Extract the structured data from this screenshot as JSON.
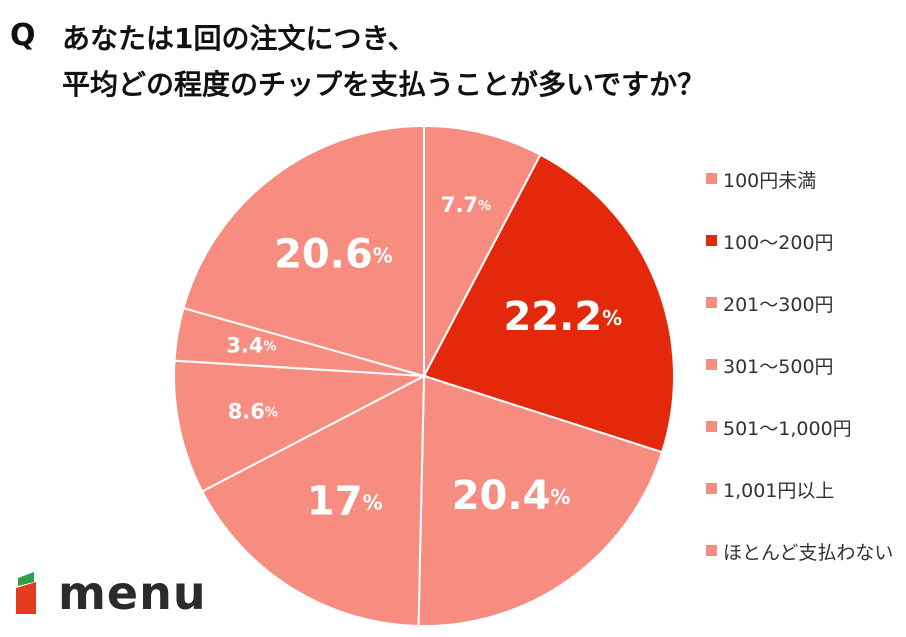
{
  "header": {
    "q_mark": "Q",
    "question_line1": "あなたは1回の注文につき、",
    "question_line2": "平均どの程度のチップを支払うことが多いですか？"
  },
  "chart_data": {
    "type": "pie",
    "title": "あなたは1回の注文につき、平均どの程度のチップを支払うことが多いですか？",
    "unit": "%",
    "categories": [
      "100円未満",
      "100〜200円",
      "201〜300円",
      "301〜500円",
      "501〜1,000円",
      "1,001円以上",
      "ほとんど支払わない"
    ],
    "slices": [
      {
        "label": "100円未満",
        "value": 7.7,
        "display": "7.7",
        "color": "#f78c80"
      },
      {
        "label": "100〜200円",
        "value": 22.2,
        "display": "22.2",
        "color": "#e4280b"
      },
      {
        "label": "201〜300円",
        "value": 20.4,
        "display": "20.4",
        "color": "#f78c80"
      },
      {
        "label": "301〜500円",
        "value": 17,
        "display": "17",
        "color": "#f78c80"
      },
      {
        "label": "501〜1,000円",
        "value": 8.6,
        "display": "8.6",
        "color": "#f78c80"
      },
      {
        "label": "1,001円以上",
        "value": 3.4,
        "display": "3.4",
        "color": "#f78c80"
      },
      {
        "label": "ほとんど支払わない",
        "value": 20.6,
        "display": "20.6",
        "color": "#f78c80"
      }
    ],
    "legend_position": "right",
    "start_angle": "12 o'clock",
    "direction": "clockwise"
  },
  "colors": {
    "accent": "#e4280b",
    "base": "#f78c80",
    "logo_green": "#2f9e46",
    "logo_red": "#e63a1f"
  },
  "legend": {
    "items": [
      {
        "label": "100円未満",
        "color": "#f78c80"
      },
      {
        "label": "100〜200円",
        "color": "#e4280b"
      },
      {
        "label": "201〜300円",
        "color": "#f78c80"
      },
      {
        "label": "301〜500円",
        "color": "#f78c80"
      },
      {
        "label": "501〜1,000円",
        "color": "#f78c80"
      },
      {
        "label": "1,001円以上",
        "color": "#f78c80"
      },
      {
        "label": "ほとんど支払わない",
        "color": "#f78c80"
      }
    ]
  },
  "logo": {
    "word": "menu",
    "icon": "menu-logo-icon"
  }
}
